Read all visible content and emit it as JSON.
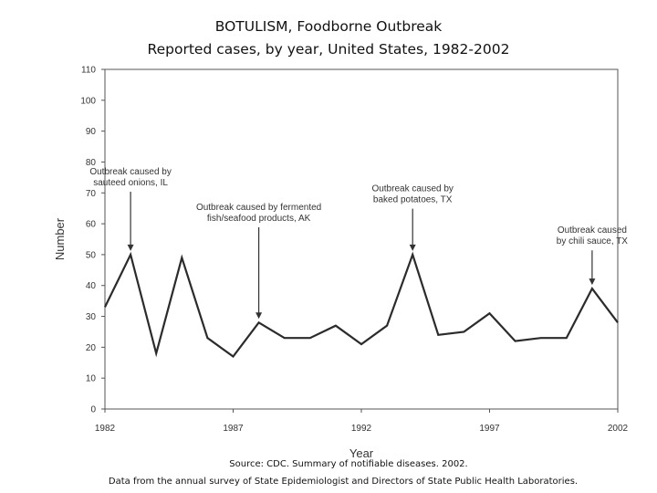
{
  "page": {
    "title_line1": "BOTULISM, Foodborne Outbreak",
    "title_line2": "Reported cases, by year,  United States, 1982-2002",
    "source_line1": "Source:  CDC. Summary of notifiable diseases. 2002.",
    "source_line2": "Data from the annual survey of State Epidemiologist and Directors of State Public Health Laboratories."
  },
  "chart_data": {
    "type": "line",
    "title": "BOTULISM, Foodborne Outbreak",
    "subtitle": "Reported cases, by year,  United States, 1982-2002",
    "xlabel": "Year",
    "ylabel": "Number",
    "xlim": [
      1982,
      2002
    ],
    "ylim": [
      0,
      110
    ],
    "x_ticks": [
      1982,
      1987,
      1992,
      1997,
      2002
    ],
    "y_ticks": [
      0,
      10,
      20,
      30,
      40,
      50,
      60,
      70,
      80,
      90,
      100,
      110
    ],
    "grid": false,
    "series": [
      {
        "x": [
          1982,
          1983,
          1984,
          1985,
          1986,
          1987,
          1988,
          1989,
          1990,
          1991,
          1992,
          1993,
          1994,
          1995,
          1996,
          1997,
          1998,
          1999,
          2000,
          2001,
          2002
        ],
        "values": [
          33,
          50,
          18,
          49,
          23,
          17,
          28,
          23,
          23,
          27,
          21,
          27,
          50,
          24,
          25,
          31,
          22,
          23,
          23,
          39,
          28
        ]
      }
    ],
    "annotations": [
      {
        "lines": [
          "Outbreak caused by",
          "sauteed onions, IL"
        ],
        "x": 1983,
        "y": 50,
        "label_y_top": 76,
        "align": "middle"
      },
      {
        "lines": [
          "Outbreak caused by fermented",
          "fish/seafood products, AK"
        ],
        "x": 1988,
        "y": 28,
        "label_y_top": 64.5,
        "align": "middle"
      },
      {
        "lines": [
          "Outbreak caused by",
          "baked potatoes, TX"
        ],
        "x": 1994,
        "y": 50,
        "label_y_top": 70.5,
        "align": "middle"
      },
      {
        "lines": [
          "Outbreak caused",
          "by chili sauce, TX"
        ],
        "x": 2001,
        "y": 39,
        "label_y_top": 57,
        "align": "middle"
      }
    ],
    "line_color": "#2b2b2b"
  }
}
